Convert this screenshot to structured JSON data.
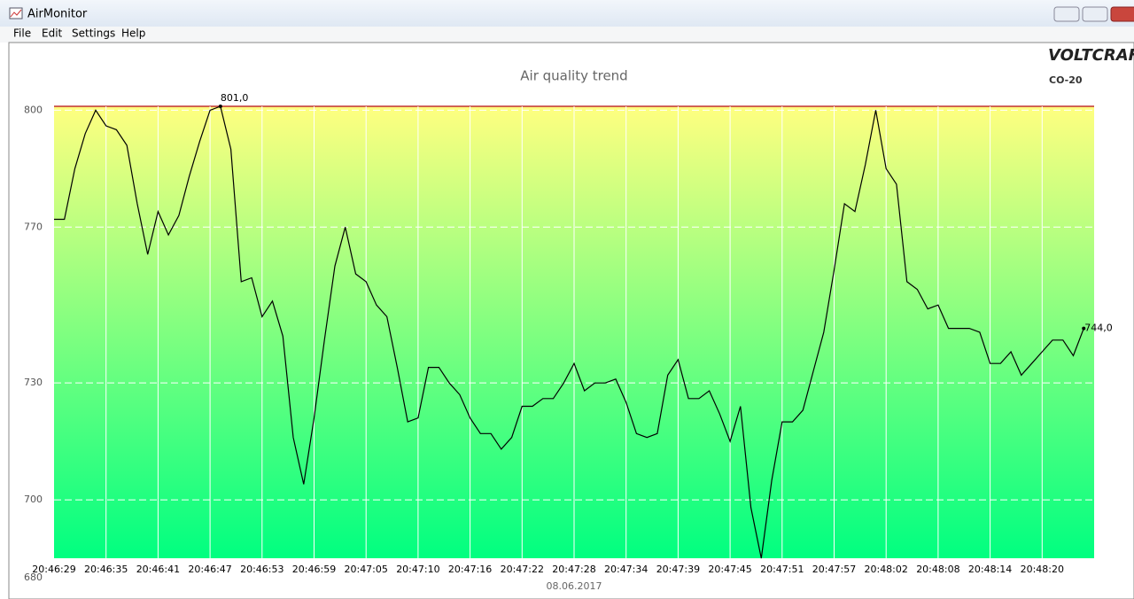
{
  "window": {
    "title": "AirMonitor",
    "menu": [
      "File",
      "Edit",
      "Settings",
      "Help"
    ]
  },
  "brand": {
    "name": "VOLTCRAFT",
    "model": "CO-20"
  },
  "chart_data": {
    "type": "line",
    "title": "Air quality trend",
    "xlabel": "08.06.2017",
    "color": "#000000",
    "categories": [
      "20:46:29",
      null,
      null,
      null,
      null,
      "20:46:35",
      null,
      null,
      null,
      null,
      "20:46:41",
      null,
      null,
      null,
      null,
      "20:46:47",
      null,
      null,
      null,
      null,
      "20:46:53",
      null,
      null,
      null,
      null,
      "20:46:59",
      null,
      null,
      null,
      null,
      "20:47:05",
      null,
      null,
      null,
      null,
      "20:47:10",
      null,
      null,
      null,
      null,
      "20:47:16",
      null,
      null,
      null,
      null,
      "20:47:22",
      null,
      null,
      null,
      null,
      "20:47:28",
      null,
      null,
      null,
      null,
      "20:47:34",
      null,
      null,
      null,
      null,
      "20:47:39",
      null,
      null,
      null,
      null,
      "20:47:45",
      null,
      null,
      null,
      null,
      "20:47:51",
      null,
      null,
      null,
      null,
      "20:47:57",
      null,
      null,
      null,
      null,
      "20:48:02",
      null,
      null,
      null,
      null,
      "20:48:08",
      null,
      null,
      null,
      null,
      "20:48:14",
      null,
      null,
      null,
      null,
      "20:48:20",
      null,
      null,
      null,
      null
    ],
    "values": [
      772,
      772,
      785,
      794,
      800,
      796,
      795,
      791,
      776,
      763,
      774,
      768,
      773,
      783,
      792,
      800,
      801,
      790,
      756,
      757,
      747,
      751,
      742,
      716,
      704,
      721,
      741,
      760,
      770,
      758,
      756,
      750,
      747,
      734,
      720,
      721,
      734,
      734,
      730,
      727,
      721,
      717,
      717,
      713,
      716,
      724,
      724,
      726,
      726,
      730,
      735,
      728,
      730,
      730,
      731,
      725,
      717,
      716,
      717,
      732,
      736,
      726,
      726,
      728,
      722,
      715,
      724,
      698,
      685,
      705,
      720,
      720,
      723,
      733,
      743,
      759,
      776,
      774,
      786,
      800,
      785,
      781,
      756,
      754,
      749,
      750,
      744,
      744,
      744,
      743,
      735,
      735,
      738,
      732,
      735,
      738,
      741,
      741,
      737,
      744
    ],
    "value_labels": [
      null,
      null,
      null,
      null,
      null,
      null,
      null,
      null,
      null,
      null,
      null,
      null,
      null,
      null,
      null,
      null,
      "801,0",
      null,
      null,
      null,
      null,
      null,
      null,
      null,
      null,
      null,
      null,
      null,
      null,
      null,
      null,
      null,
      null,
      null,
      null,
      null,
      null,
      null,
      null,
      null,
      null,
      null,
      null,
      null,
      null,
      null,
      null,
      null,
      null,
      null,
      null,
      null,
      null,
      null,
      null,
      null,
      null,
      null,
      null,
      null,
      null,
      null,
      null,
      null,
      null,
      null,
      null,
      null,
      null,
      null,
      null,
      null,
      null,
      null,
      null,
      null,
      null,
      null,
      null,
      null,
      null,
      null,
      null,
      null,
      null,
      null,
      null,
      null,
      null,
      null,
      null,
      null,
      null,
      null,
      null,
      null,
      null,
      null,
      null,
      "744,0"
    ],
    "ylim": [
      680,
      801
    ],
    "yticks": [
      680,
      700,
      730,
      770,
      800
    ],
    "grid": true
  }
}
